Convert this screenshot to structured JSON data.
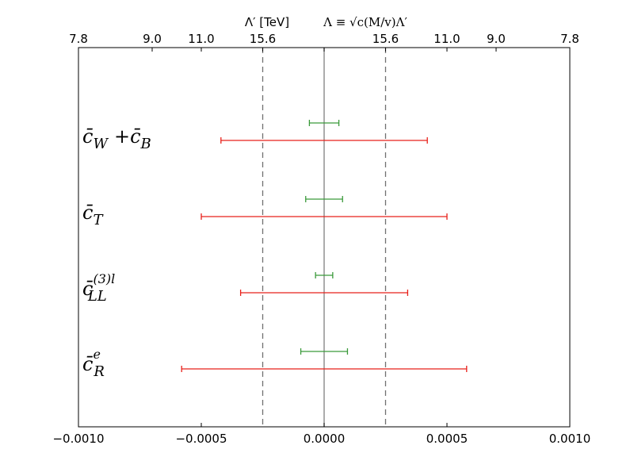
{
  "chart_data": {
    "type": "errorbar",
    "xlim": [
      -0.001,
      0.001
    ],
    "x_ticks": [
      -0.001,
      -0.0005,
      0.0,
      0.0005,
      0.001
    ],
    "x_tick_labels": [
      "−0.0010",
      "−0.0005",
      "0.0000",
      "0.0005",
      "0.0010"
    ],
    "top_axis": {
      "title": "Λ′  [TeV]",
      "formula": "Λ ≡ √c(M/v)Λ′",
      "ticks": [
        -0.001,
        -0.0007,
        -0.0005,
        -0.00025,
        0.00025,
        0.0005,
        0.0007,
        0.001
      ],
      "tick_labels": [
        "7.8",
        "9.0",
        "11.0",
        "15.6",
        "15.6",
        "11.0",
        "9.0",
        "7.8"
      ]
    },
    "reference_lines": {
      "solid": [
        0.0
      ],
      "dashed": [
        -0.00025,
        0.00025
      ]
    },
    "rows": [
      {
        "label_base": "c̄",
        "label_sub": "W",
        "label_sup": "",
        "label_tail": "+c̄",
        "label_tail_sub": "B",
        "green": [
          -6e-05,
          6e-05
        ],
        "red": [
          -0.00042,
          0.00042
        ]
      },
      {
        "label_base": "c̄",
        "label_sub": "T",
        "label_sup": "",
        "label_tail": "",
        "label_tail_sub": "",
        "green": [
          -7.5e-05,
          7.5e-05
        ],
        "red": [
          -0.0005,
          0.0005
        ]
      },
      {
        "label_base": "c̄",
        "label_sub": "LL",
        "label_sup": "(3)l",
        "label_tail": "",
        "label_tail_sub": "",
        "green": [
          -3.5e-05,
          3.5e-05
        ],
        "red": [
          -0.00034,
          0.00034
        ]
      },
      {
        "label_base": "c̄",
        "label_sub": "R",
        "label_sup": "e",
        "label_tail": "",
        "label_tail_sub": "",
        "green": [
          -9.5e-05,
          9.5e-05
        ],
        "red": [
          -0.00058,
          0.00058
        ]
      }
    ],
    "colors": {
      "green": "#3a9a3a",
      "red": "#e8201a",
      "zero_line": "#808080",
      "dashed_line": "#707070",
      "frame": "#000000"
    }
  }
}
